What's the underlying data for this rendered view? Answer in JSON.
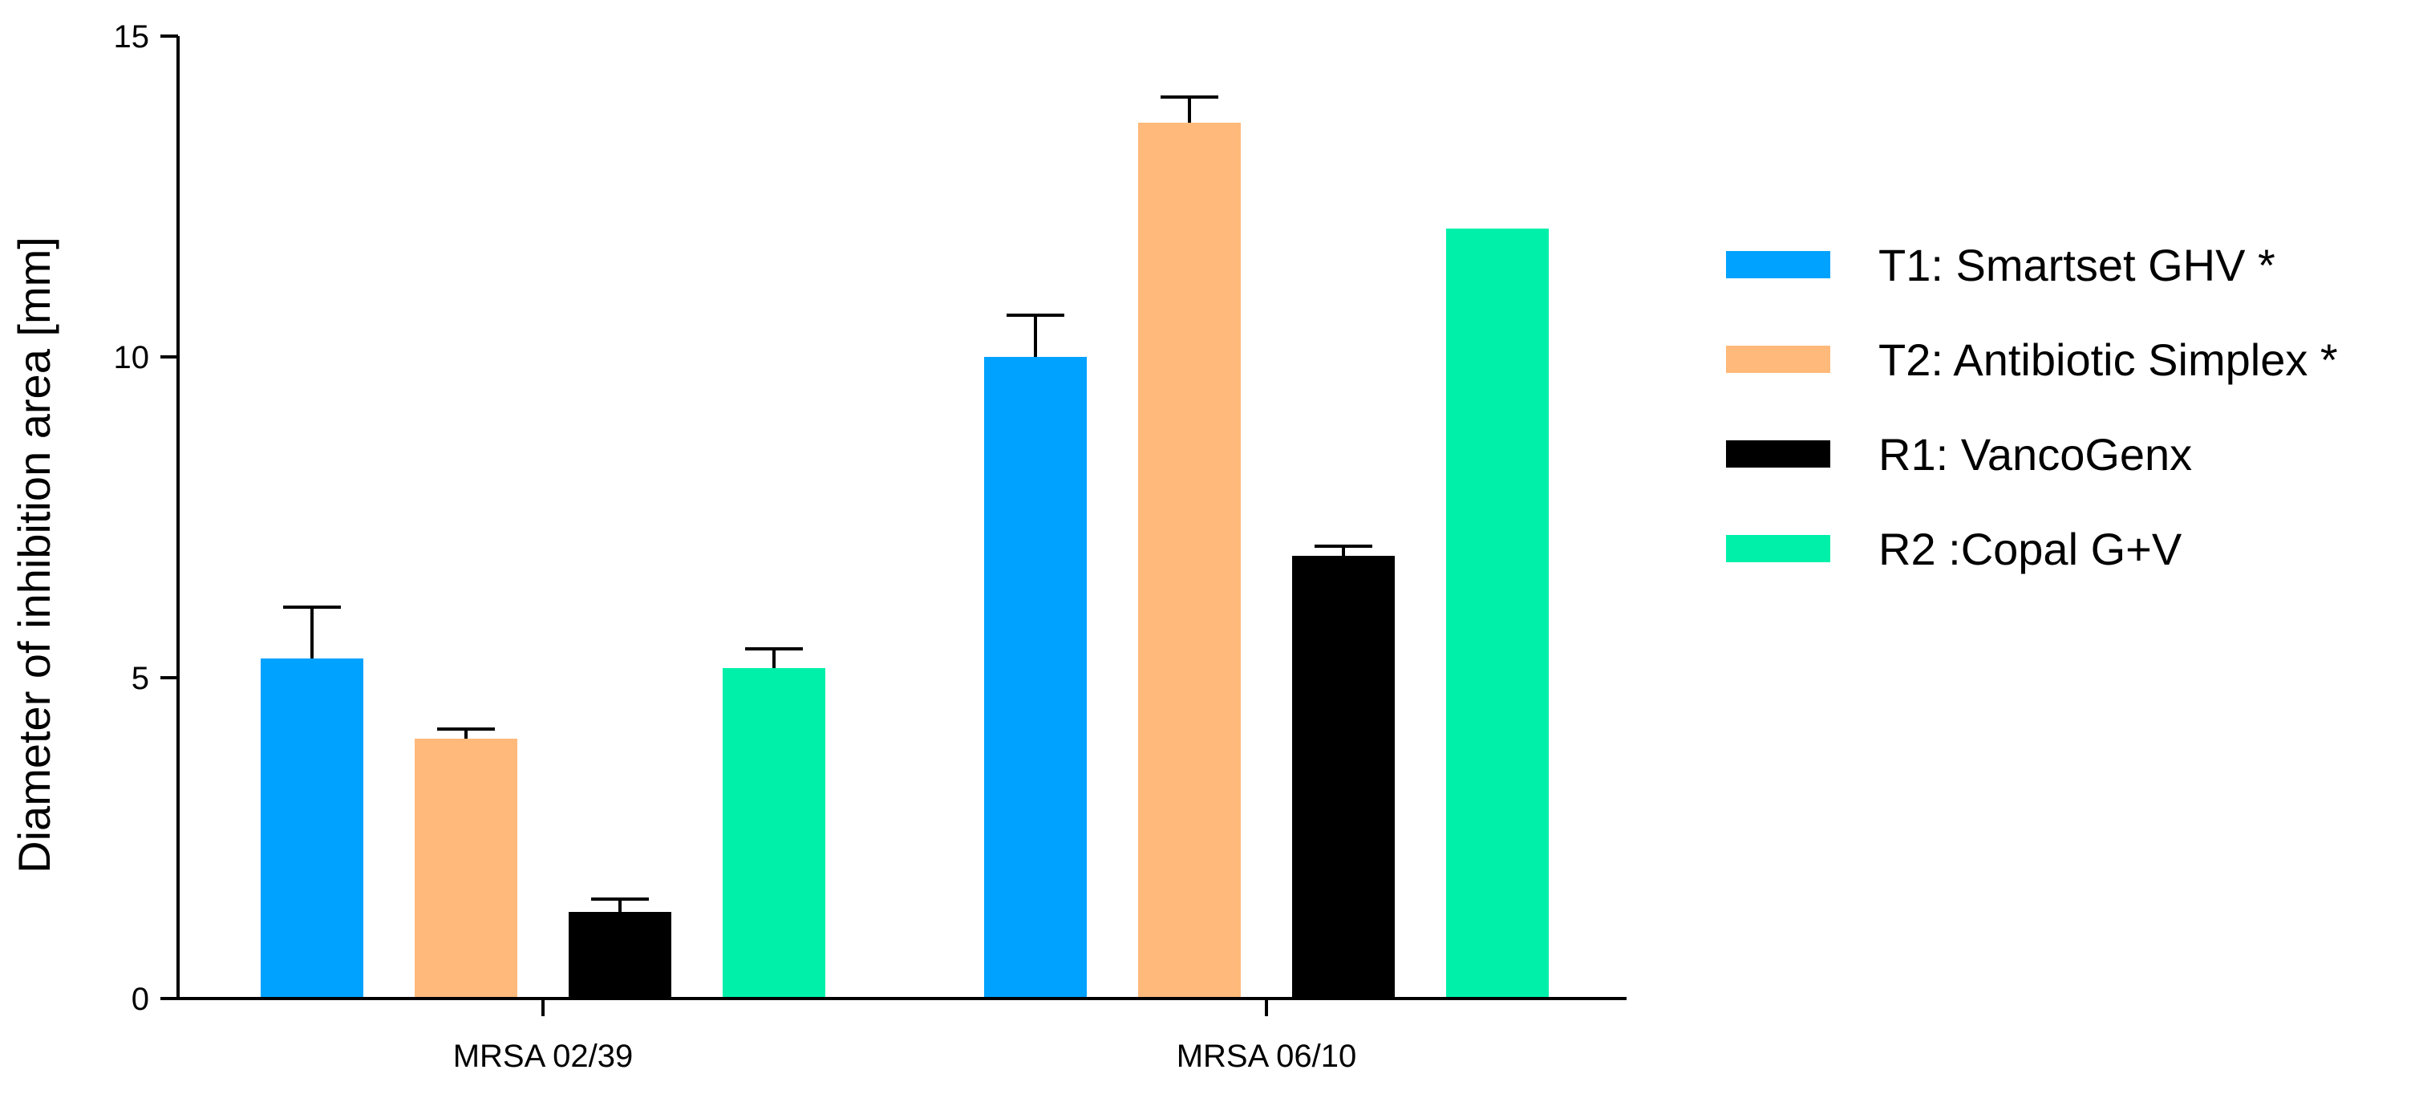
{
  "chart_data": {
    "type": "bar",
    "categories": [
      "MRSA 02/39",
      "MRSA 06/10"
    ],
    "series": [
      {
        "name": "T1: Smartset GHV *",
        "color": "#00A2FF",
        "values": [
          5.3,
          10.0
        ],
        "errors": [
          0.8,
          0.65
        ]
      },
      {
        "name": "T2: Antibiotic Simplex *",
        "color": "#FFB97A",
        "values": [
          4.05,
          13.65
        ],
        "errors": [
          0.15,
          0.4
        ]
      },
      {
        "name": "R1: VancoGenx",
        "color": "#000000",
        "values": [
          1.35,
          6.9
        ],
        "errors": [
          0.2,
          0.15
        ]
      },
      {
        "name": "R2 :Copal G+V",
        "color": "#00F0AA",
        "values": [
          5.15,
          12.0
        ],
        "errors": [
          0.3,
          0.0
        ]
      }
    ],
    "ylabel": "Diameter of inhibition area [mm]",
    "xlabel": "",
    "ylim": [
      0,
      15
    ],
    "yticks": [
      "0",
      "5",
      "10",
      "15"
    ],
    "legend_position": "right",
    "grid": false
  }
}
